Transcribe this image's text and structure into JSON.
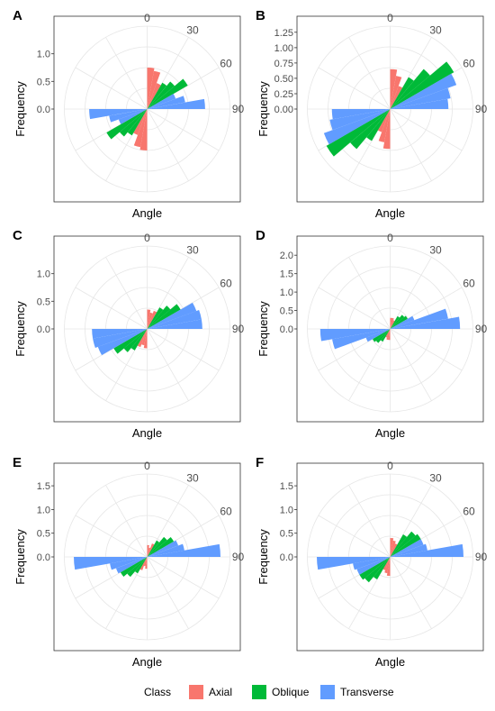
{
  "figure": {
    "legend": {
      "title": "Class",
      "items": [
        {
          "label": "Axial",
          "color": "#F8766D"
        },
        {
          "label": "Oblique",
          "color": "#00BA38"
        },
        {
          "label": "Transverse",
          "color": "#619CFF"
        }
      ]
    }
  },
  "chart_data": [
    {
      "panel": "A",
      "type": "polar-bar",
      "xlabel": "Angle",
      "ylabel": "Frequency",
      "angle_ticks": [
        "0",
        "30",
        "60",
        "90"
      ],
      "radial_ticks": [
        "0.0",
        "0.5",
        "1.0"
      ],
      "rmax": 1.5,
      "series": [
        {
          "name": "Axial",
          "color": "#F8766D",
          "bins": [
            {
              "start": 0,
              "end": 10,
              "value": 0.75
            },
            {
              "start": 10,
              "end": 20,
              "value": 0.7
            },
            {
              "start": 20,
              "end": 30,
              "value": 0.5
            }
          ]
        },
        {
          "name": "Oblique",
          "color": "#00BA38",
          "bins": [
            {
              "start": 30,
              "end": 40,
              "value": 0.55
            },
            {
              "start": 40,
              "end": 50,
              "value": 0.65
            },
            {
              "start": 50,
              "end": 60,
              "value": 0.85
            }
          ]
        },
        {
          "name": "Transverse",
          "color": "#619CFF",
          "bins": [
            {
              "start": 60,
              "end": 70,
              "value": 0.55
            },
            {
              "start": 70,
              "end": 80,
              "value": 0.7
            },
            {
              "start": 80,
              "end": 90,
              "value": 1.05
            }
          ]
        }
      ]
    },
    {
      "panel": "B",
      "type": "polar-bar",
      "xlabel": "Angle",
      "ylabel": "Frequency",
      "angle_ticks": [
        "0",
        "30",
        "60",
        "90"
      ],
      "radial_ticks": [
        "0.00",
        "0.25",
        "0.50",
        "0.75",
        "1.00",
        "1.25"
      ],
      "rmax": 1.35,
      "series": [
        {
          "name": "Axial",
          "color": "#F8766D",
          "bins": [
            {
              "start": 0,
              "end": 10,
              "value": 0.65
            },
            {
              "start": 10,
              "end": 20,
              "value": 0.55
            },
            {
              "start": 20,
              "end": 30,
              "value": 0.4
            }
          ]
        },
        {
          "name": "Oblique",
          "color": "#00BA38",
          "bins": [
            {
              "start": 30,
              "end": 40,
              "value": 0.6
            },
            {
              "start": 40,
              "end": 50,
              "value": 0.85
            },
            {
              "start": 50,
              "end": 60,
              "value": 1.2
            }
          ]
        },
        {
          "name": "Transverse",
          "color": "#619CFF",
          "bins": [
            {
              "start": 60,
              "end": 70,
              "value": 1.15
            },
            {
              "start": 70,
              "end": 80,
              "value": 1.0
            },
            {
              "start": 80,
              "end": 90,
              "value": 0.95
            }
          ]
        }
      ]
    },
    {
      "panel": "C",
      "type": "polar-bar",
      "xlabel": "Angle",
      "ylabel": "Frequency",
      "angle_ticks": [
        "0",
        "30",
        "60",
        "90"
      ],
      "radial_ticks": [
        "0.0",
        "0.5",
        "1.0"
      ],
      "rmax": 1.5,
      "series": [
        {
          "name": "Axial",
          "color": "#F8766D",
          "bins": [
            {
              "start": 0,
              "end": 10,
              "value": 0.35
            },
            {
              "start": 10,
              "end": 20,
              "value": 0.3
            },
            {
              "start": 20,
              "end": 30,
              "value": 0.35
            }
          ]
        },
        {
          "name": "Oblique",
          "color": "#00BA38",
          "bins": [
            {
              "start": 30,
              "end": 40,
              "value": 0.45
            },
            {
              "start": 40,
              "end": 50,
              "value": 0.55
            },
            {
              "start": 50,
              "end": 60,
              "value": 0.7
            }
          ]
        },
        {
          "name": "Transverse",
          "color": "#619CFF",
          "bins": [
            {
              "start": 60,
              "end": 70,
              "value": 0.95
            },
            {
              "start": 70,
              "end": 80,
              "value": 1.0
            },
            {
              "start": 80,
              "end": 90,
              "value": 1.0
            }
          ]
        }
      ]
    },
    {
      "panel": "D",
      "type": "polar-bar",
      "xlabel": "Angle",
      "ylabel": "Frequency",
      "angle_ticks": [
        "0",
        "30",
        "60",
        "90"
      ],
      "radial_ticks": [
        "0.0",
        "0.5",
        "1.0",
        "1.5",
        "2.0"
      ],
      "rmax": 2.25,
      "series": [
        {
          "name": "Axial",
          "color": "#F8766D",
          "bins": [
            {
              "start": 0,
              "end": 10,
              "value": 0.3
            },
            {
              "start": 10,
              "end": 20,
              "value": 0.3
            },
            {
              "start": 20,
              "end": 30,
              "value": 0.25
            }
          ]
        },
        {
          "name": "Oblique",
          "color": "#00BA38",
          "bins": [
            {
              "start": 30,
              "end": 40,
              "value": 0.4
            },
            {
              "start": 40,
              "end": 50,
              "value": 0.5
            },
            {
              "start": 50,
              "end": 60,
              "value": 0.55
            }
          ]
        },
        {
          "name": "Transverse",
          "color": "#619CFF",
          "bins": [
            {
              "start": 60,
              "end": 70,
              "value": 0.7
            },
            {
              "start": 70,
              "end": 80,
              "value": 1.6
            },
            {
              "start": 80,
              "end": 90,
              "value": 1.9
            }
          ]
        }
      ]
    },
    {
      "panel": "E",
      "type": "polar-bar",
      "xlabel": "Angle",
      "ylabel": "Frequency",
      "angle_ticks": [
        "0",
        "30",
        "60",
        "90"
      ],
      "radial_ticks": [
        "0.0",
        "0.5",
        "1.0",
        "1.5"
      ],
      "rmax": 1.75,
      "series": [
        {
          "name": "Axial",
          "color": "#F8766D",
          "bins": [
            {
              "start": 0,
              "end": 10,
              "value": 0.25
            },
            {
              "start": 10,
              "end": 20,
              "value": 0.2
            },
            {
              "start": 20,
              "end": 30,
              "value": 0.3
            }
          ]
        },
        {
          "name": "Oblique",
          "color": "#00BA38",
          "bins": [
            {
              "start": 30,
              "end": 40,
              "value": 0.4
            },
            {
              "start": 40,
              "end": 50,
              "value": 0.55
            },
            {
              "start": 50,
              "end": 60,
              "value": 0.65
            }
          ]
        },
        {
          "name": "Transverse",
          "color": "#619CFF",
          "bins": [
            {
              "start": 60,
              "end": 70,
              "value": 0.7
            },
            {
              "start": 70,
              "end": 80,
              "value": 0.8
            },
            {
              "start": 80,
              "end": 90,
              "value": 1.55
            }
          ]
        }
      ]
    },
    {
      "panel": "F",
      "type": "polar-bar",
      "xlabel": "Angle",
      "ylabel": "Frequency",
      "angle_ticks": [
        "0",
        "30",
        "60",
        "90"
      ],
      "radial_ticks": [
        "0.0",
        "0.5",
        "1.0",
        "1.5"
      ],
      "rmax": 1.75,
      "series": [
        {
          "name": "Axial",
          "color": "#F8766D",
          "bins": [
            {
              "start": 0,
              "end": 10,
              "value": 0.4
            },
            {
              "start": 10,
              "end": 20,
              "value": 0.35
            },
            {
              "start": 20,
              "end": 30,
              "value": 0.3
            }
          ]
        },
        {
          "name": "Oblique",
          "color": "#00BA38",
          "bins": [
            {
              "start": 30,
              "end": 40,
              "value": 0.55
            },
            {
              "start": 40,
              "end": 50,
              "value": 0.7
            },
            {
              "start": 50,
              "end": 60,
              "value": 0.75
            }
          ]
        },
        {
          "name": "Transverse",
          "color": "#619CFF",
          "bins": [
            {
              "start": 60,
              "end": 70,
              "value": 0.75
            },
            {
              "start": 70,
              "end": 80,
              "value": 0.8
            },
            {
              "start": 80,
              "end": 90,
              "value": 1.55
            }
          ]
        }
      ]
    }
  ]
}
